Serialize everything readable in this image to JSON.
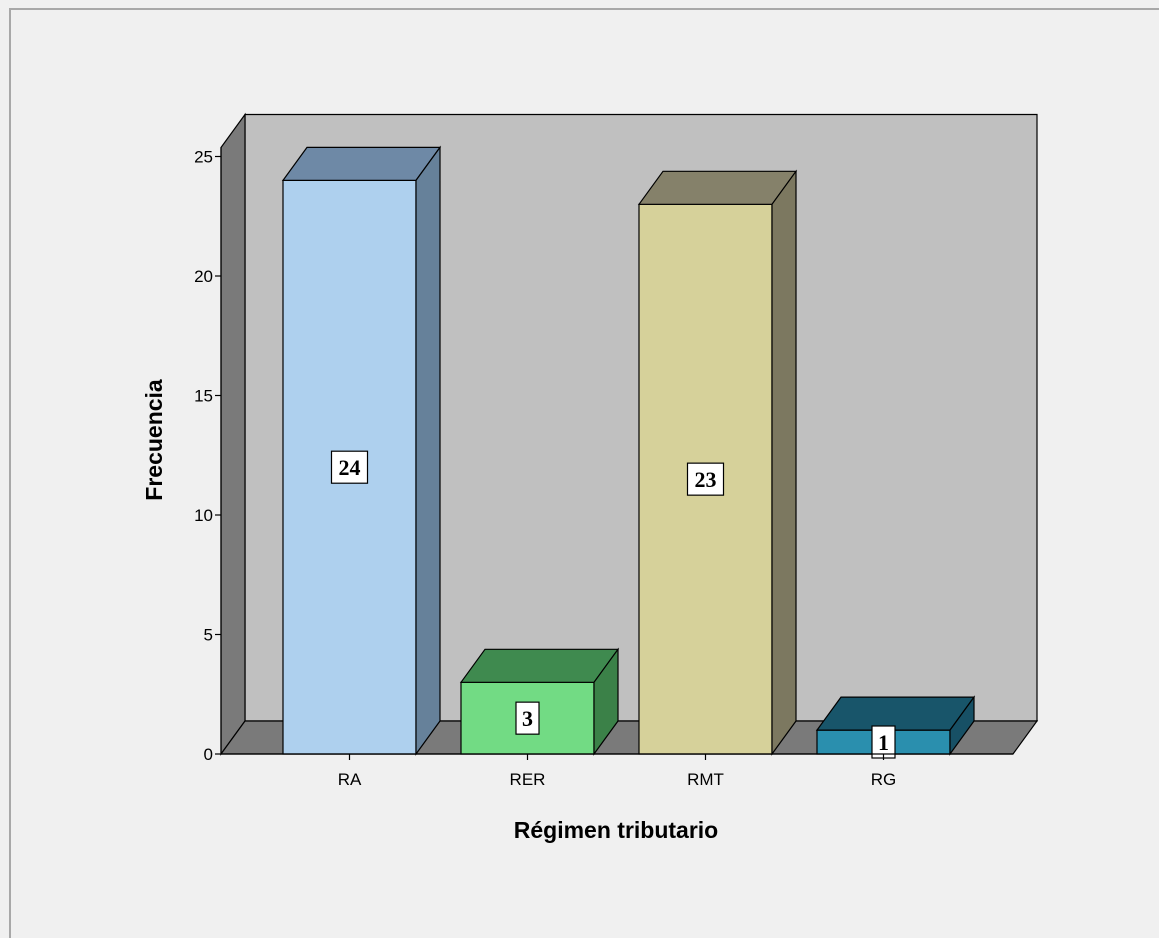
{
  "chart_data": {
    "type": "bar",
    "style": "3d",
    "categories": [
      "RA",
      "RER",
      "RMT",
      "RG"
    ],
    "values": [
      24,
      3,
      23,
      1
    ],
    "data_labels": [
      "24",
      "3",
      "23",
      "1"
    ],
    "xlabel": "Régimen tributario",
    "ylabel": "Frecuencia",
    "ylim": [
      0,
      25
    ],
    "yticks": [
      0,
      5,
      10,
      15,
      20,
      25
    ],
    "ytick_labels": [
      "0",
      "5",
      "10",
      "15",
      "20",
      "25"
    ],
    "grid": false,
    "colors": {
      "background": "#f0f0f0",
      "back_wall": "#c0c0c0",
      "side_wall": "#7a7a7a",
      "floor": "#7a7a7a",
      "bars": [
        {
          "front": "#aed0ee",
          "top": "#6e89a6",
          "side": "#66819a"
        },
        {
          "front": "#72db84",
          "top": "#3f8a4f",
          "side": "#3b8148"
        },
        {
          "front": "#d6d19a",
          "top": "#85816a",
          "side": "#7c7860"
        },
        {
          "front": "#2a8fae",
          "top": "#18556a",
          "side": "#175065"
        }
      ]
    }
  }
}
